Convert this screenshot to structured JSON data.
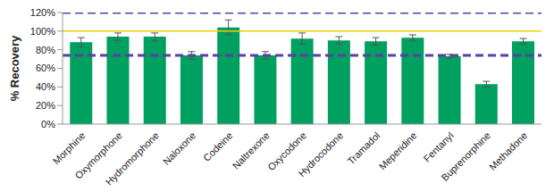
{
  "chart_data": {
    "type": "bar",
    "y_label": "% Recovery",
    "categories": [
      "Morphine",
      "Oxymorphone",
      "Hydromorphone",
      "Naloxone",
      "Codeine",
      "Naltrexone",
      "Oxycodone",
      "Hydrocodone",
      "Tramadol",
      "Meperidine",
      "Fentanyl",
      "Buprenorphine",
      "Methadone"
    ],
    "values": [
      88,
      94,
      94,
      74,
      104,
      74,
      92,
      90,
      89,
      93,
      73,
      43,
      89
    ],
    "errors": [
      5,
      4,
      4,
      4,
      8,
      4,
      6,
      4,
      4,
      3,
      2,
      3,
      3
    ],
    "color": "#00a060",
    "ylim": [
      0,
      120
    ],
    "yticks": [
      {
        "value": 0,
        "label": "0%"
      },
      {
        "value": 20,
        "label": "20%"
      },
      {
        "value": 40,
        "label": "40%"
      },
      {
        "value": 60,
        "label": "60%"
      },
      {
        "value": 80,
        "label": "80%"
      },
      {
        "value": 100,
        "label": "100%"
      },
      {
        "value": 120,
        "label": "120%"
      }
    ],
    "reference_lines": [
      {
        "value": 120,
        "color": "#5b3fa3",
        "line_style": "dashed"
      },
      {
        "value": 74,
        "color": "#5b3fa3",
        "line_style": "dashed"
      },
      {
        "value": 100,
        "color": "#f2cf00",
        "line_style": "solid"
      }
    ],
    "grid": false
  }
}
